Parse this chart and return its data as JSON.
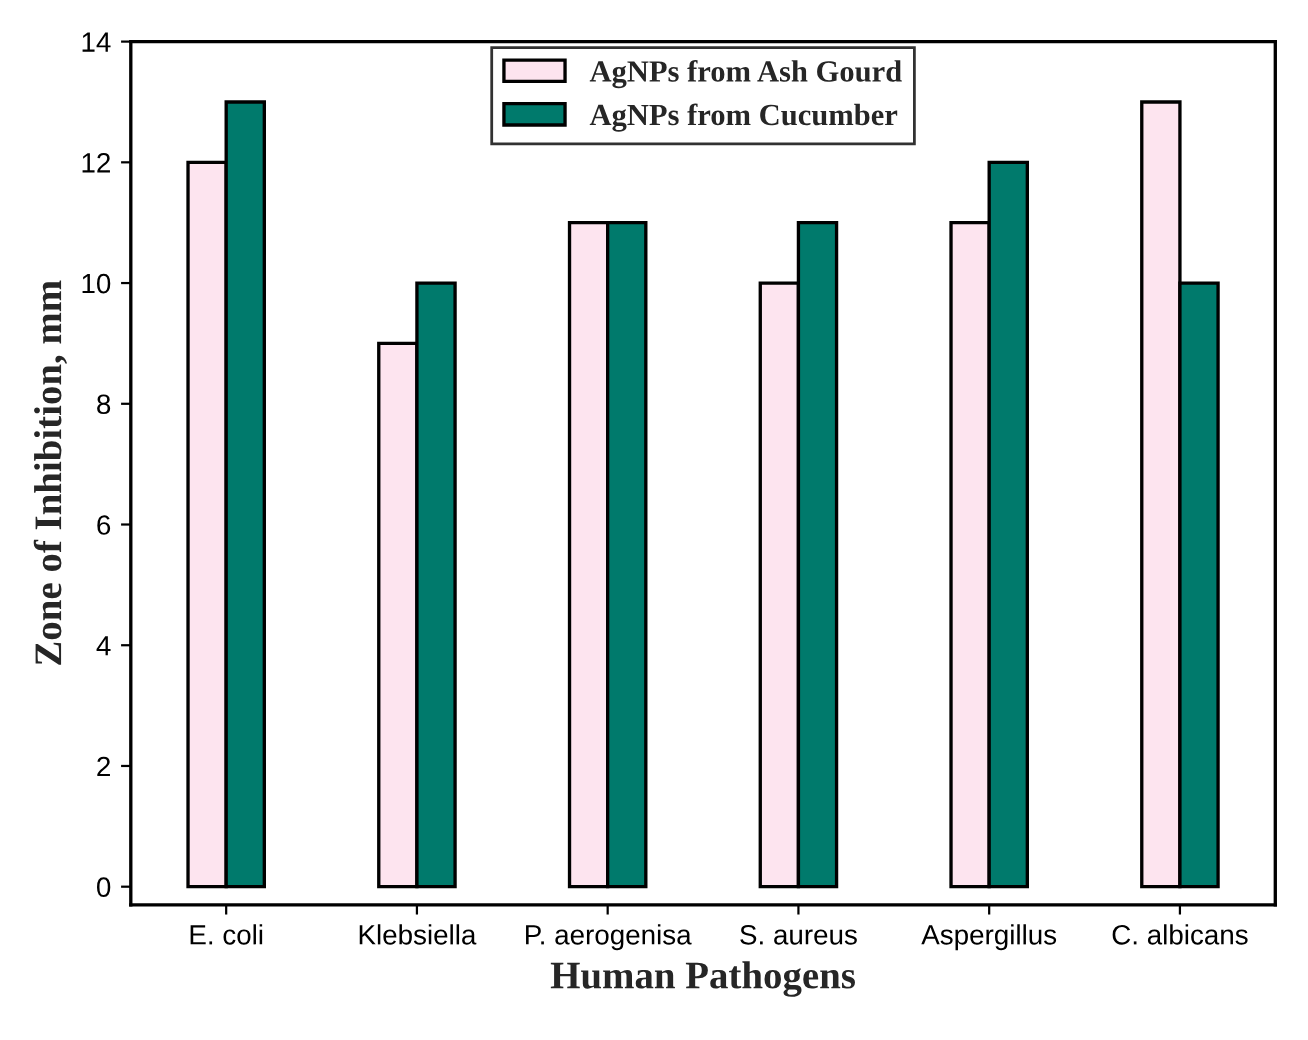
{
  "chart_data": {
    "type": "bar",
    "xlabel": "Human Pathogens",
    "ylabel": "Zone of Inhibition, mm",
    "categories": [
      "E. coli",
      "Klebsiella",
      "P. aerogenisa",
      "S. aureus",
      "Aspergillus",
      "C. albicans"
    ],
    "series": [
      {
        "name": "AgNPs from Ash Gourd",
        "color": "#fde4ef",
        "values": [
          12,
          9,
          11,
          10,
          11,
          13
        ]
      },
      {
        "name": "AgNPs from Cucumber",
        "color": "#007a6c",
        "values": [
          13,
          10,
          11,
          11,
          12,
          10
        ]
      }
    ],
    "ylim": [
      -0.3,
      14
    ],
    "yticks": [
      0,
      2,
      4,
      6,
      8,
      10,
      12,
      14
    ],
    "grid": false,
    "legend": "top"
  }
}
